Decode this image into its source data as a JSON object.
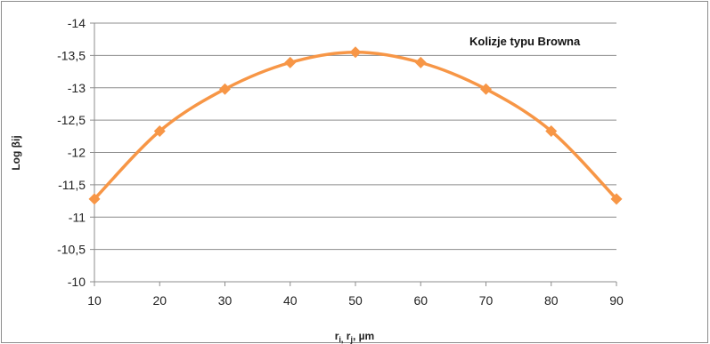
{
  "chart_data": {
    "type": "line",
    "x": [
      10,
      20,
      30,
      40,
      50,
      60,
      70,
      80,
      90
    ],
    "series": [
      {
        "values": [
          -11.28,
          -12.33,
          -12.98,
          -13.39,
          -13.55,
          -13.39,
          -12.98,
          -12.33,
          -11.28
        ],
        "color": "#F79646",
        "marker": "diamond",
        "smooth": true
      }
    ],
    "xticks": [
      "10",
      "20",
      "30",
      "40",
      "50",
      "60",
      "70",
      "80",
      "90"
    ],
    "yticks": [
      "-10",
      "-10,5",
      "-11",
      "-11,5",
      "-12",
      "-12,5",
      "-13",
      "-13,5",
      "-14"
    ],
    "xlim": [
      10,
      90
    ],
    "ylim": [
      -10,
      -14
    ],
    "y_reversed": true,
    "ylabel": "Log βij",
    "xlabel_main": "r",
    "xlabel_sub1": "i,",
    "xlabel_mid": " r",
    "xlabel_sub2": "j",
    "xlabel_tail": ", µm",
    "annotation": "Kolizje typu Browna",
    "grid": "horizontal",
    "legend": "none"
  }
}
